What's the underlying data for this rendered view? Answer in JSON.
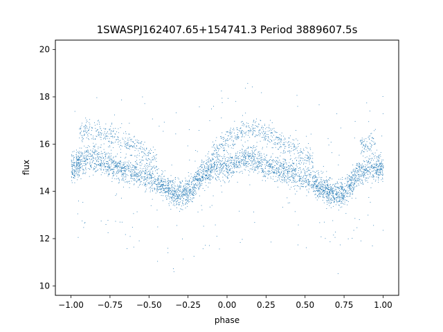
{
  "chart_data": {
    "type": "scatter",
    "title": "1SWASPJ162407.65+154741.3 Period 3889607.5s",
    "xlabel": "phase",
    "ylabel": "flux",
    "xlim": [
      -1.1,
      1.1
    ],
    "ylim": [
      9.6,
      20.4
    ],
    "x_ticks": [
      -1.0,
      -0.75,
      -0.5,
      -0.25,
      0.0,
      0.25,
      0.5,
      0.75,
      1.0
    ],
    "x_tick_labels": [
      "−1.00",
      "−0.75",
      "−0.50",
      "−0.25",
      "0.00",
      "0.25",
      "0.50",
      "0.75",
      "1.00"
    ],
    "y_ticks": [
      10,
      12,
      14,
      16,
      18,
      20
    ],
    "y_tick_labels": [
      "10",
      "12",
      "14",
      "16",
      "18",
      "20"
    ],
    "grid": false,
    "legend": "none",
    "marker_color": "#1f77b4",
    "series": [
      {
        "phase_sampled": [
          -1.0,
          -0.95,
          -0.9,
          -0.85,
          -0.8,
          -0.75,
          -0.7,
          -0.65,
          -0.6,
          -0.55,
          -0.5,
          -0.45,
          -0.4,
          -0.35,
          -0.3,
          -0.25,
          -0.2,
          -0.15,
          -0.1,
          -0.05,
          0.0,
          0.05,
          0.1,
          0.15,
          0.2,
          0.25,
          0.3,
          0.35,
          0.4,
          0.45,
          0.5,
          0.55,
          0.6,
          0.65,
          0.7,
          0.75,
          0.8,
          0.85,
          0.9,
          0.95,
          1.0
        ],
        "flux_main_band": [
          15.0,
          15.2,
          15.4,
          15.4,
          15.3,
          15.1,
          15.0,
          14.9,
          14.8,
          14.7,
          14.6,
          14.4,
          14.2,
          14.0,
          13.9,
          14.0,
          14.4,
          14.8,
          15.0,
          15.0,
          15.0,
          15.2,
          15.4,
          15.4,
          15.3,
          15.1,
          15.0,
          14.9,
          14.8,
          14.7,
          14.6,
          14.4,
          14.2,
          14.0,
          13.9,
          14.0,
          14.4,
          14.8,
          15.0,
          15.0,
          15.0
        ],
        "flux_upper_band": [
          null,
          16.4,
          16.6,
          16.6,
          16.5,
          16.4,
          16.3,
          16.1,
          15.9,
          15.7,
          15.5,
          15.3,
          null,
          null,
          null,
          null,
          null,
          null,
          15.6,
          15.9,
          16.2,
          16.4,
          16.6,
          16.6,
          16.5,
          16.4,
          16.3,
          16.1,
          15.9,
          15.7,
          15.5,
          15.3,
          null,
          null,
          null,
          null,
          null,
          15.8,
          16.0,
          16.2,
          null
        ]
      }
    ]
  }
}
